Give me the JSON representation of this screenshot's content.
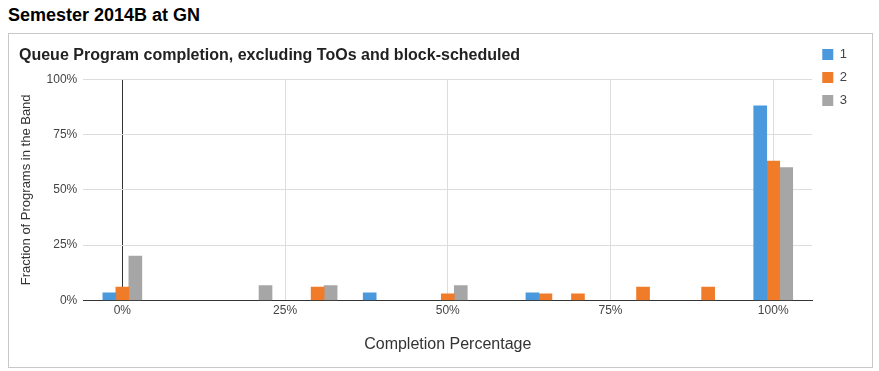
{
  "header": "Semester 2014B at GN",
  "chart_data": {
    "type": "bar",
    "title": "Queue Program completion, excluding ToOs and block-scheduled",
    "x_label": "Completion Percentage",
    "y_label": "Fraction of Programs in the Band",
    "x": [
      0,
      20,
      30,
      40,
      50,
      65,
      70,
      80,
      90,
      100
    ],
    "series": [
      {
        "name": "1",
        "color": "#4a99dd",
        "values": [
          3.4,
          null,
          null,
          3.4,
          null,
          3.4,
          null,
          null,
          null,
          88
        ]
      },
      {
        "name": "2",
        "color": "#f07b28",
        "values": [
          6,
          null,
          6,
          null,
          3,
          3,
          3,
          6,
          6,
          63
        ]
      },
      {
        "name": "3",
        "color": "#a6a6a6",
        "values": [
          20,
          6.7,
          6.7,
          null,
          6.7,
          null,
          null,
          null,
          null,
          60
        ]
      }
    ],
    "xlim": [
      -6,
      106
    ],
    "xticks": [
      {
        "value": 0,
        "label": "0%"
      },
      {
        "value": 25,
        "label": "25%"
      },
      {
        "value": 50,
        "label": "50%"
      },
      {
        "value": 75,
        "label": "75%"
      },
      {
        "value": 100,
        "label": "100%"
      }
    ],
    "ylim": [
      0,
      100
    ],
    "yticks": [
      {
        "value": 0,
        "label": "0%"
      },
      {
        "value": 25,
        "label": "25%"
      },
      {
        "value": 50,
        "label": "50%"
      },
      {
        "value": 75,
        "label": "75%"
      },
      {
        "value": 100,
        "label": "100%"
      }
    ],
    "grid": true,
    "legend": "right"
  }
}
